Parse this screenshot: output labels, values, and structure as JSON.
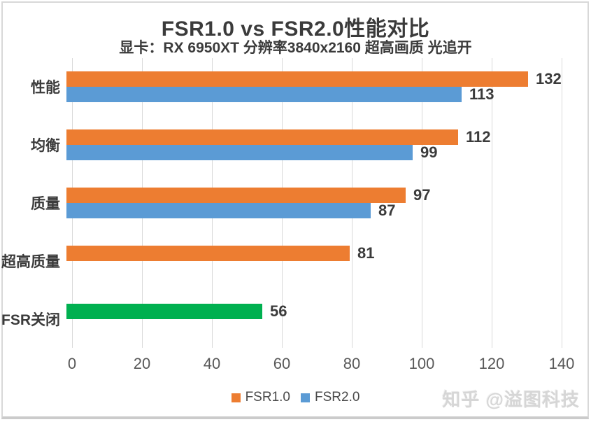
{
  "chart_data": {
    "type": "bar",
    "orientation": "horizontal",
    "title": "FSR1.0 vs FSR2.0性能对比",
    "subtitle": "显卡：RX 6950XT 分辨率3840x2160 超高画质 光追开",
    "categories": [
      "性能",
      "均衡",
      "质量",
      "超高质量",
      "FSR关闭"
    ],
    "series": [
      {
        "name": "FSR1.0",
        "color": "#ED7D31"
      },
      {
        "name": "FSR2.0",
        "color": "#5B9BD5"
      }
    ],
    "rows": [
      {
        "category": "性能",
        "bars": [
          {
            "series": "FSR1.0",
            "value": 132,
            "color": "#ED7D31"
          },
          {
            "series": "FSR2.0",
            "value": 113,
            "color": "#5B9BD5"
          }
        ]
      },
      {
        "category": "均衡",
        "bars": [
          {
            "series": "FSR1.0",
            "value": 112,
            "color": "#ED7D31"
          },
          {
            "series": "FSR2.0",
            "value": 99,
            "color": "#5B9BD5"
          }
        ]
      },
      {
        "category": "质量",
        "bars": [
          {
            "series": "FSR1.0",
            "value": 97,
            "color": "#ED7D31"
          },
          {
            "series": "FSR2.0",
            "value": 87,
            "color": "#5B9BD5"
          }
        ]
      },
      {
        "category": "超高质量",
        "bars": [
          {
            "series": "FSR1.0",
            "value": 81,
            "color": "#ED7D31"
          }
        ]
      },
      {
        "category": "FSR关闭",
        "bars": [
          {
            "value": 56,
            "color": "#00B050"
          }
        ]
      }
    ],
    "axis": {
      "min": 0,
      "max": 140,
      "ticks": [
        0,
        20,
        40,
        60,
        80,
        100,
        120,
        140
      ]
    },
    "grid": true,
    "legend_position": "bottom",
    "value_labels": true,
    "colors": {
      "grid": "#d9d9d9",
      "text_dark": "#3b3b3b",
      "text_axis": "#595959"
    }
  },
  "watermark": {
    "text": "知乎 @溢图科技"
  }
}
